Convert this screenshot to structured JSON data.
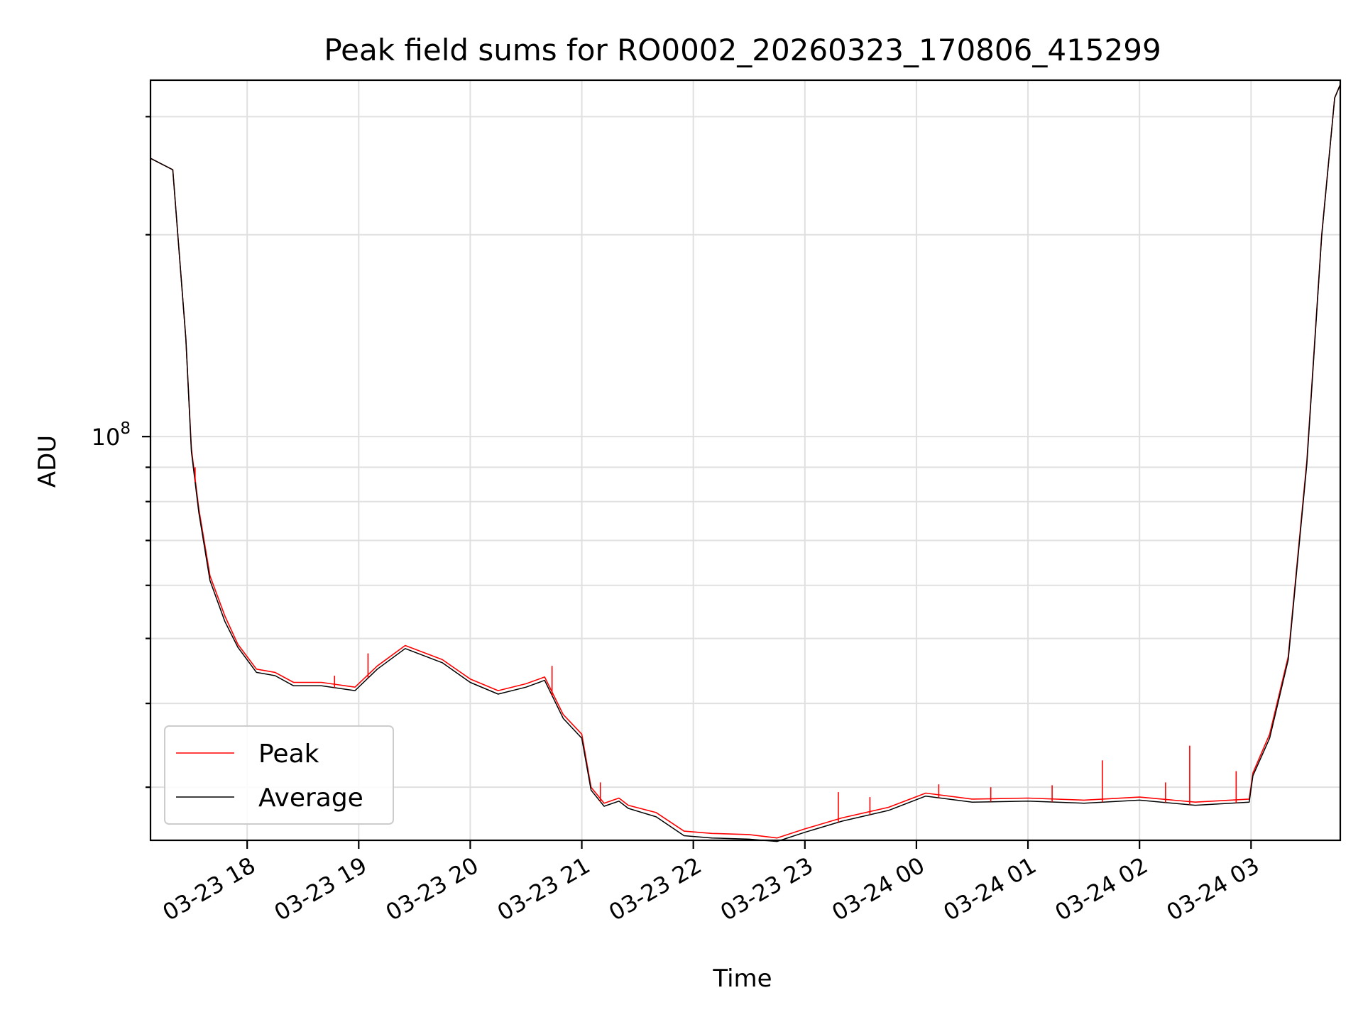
{
  "chart_data": {
    "type": "line",
    "title": "Peak field sums for RO0002_20260323_170806_415299",
    "xlabel": "Time",
    "ylabel": "ADU",
    "y_scale": "log",
    "ylim": [
      25000000,
      340000000
    ],
    "xlim": [
      "03-23 17:08",
      "03-24 03:48"
    ],
    "y_tick_labels": [
      {
        "value": 100000000,
        "base": "10",
        "exponent": "8"
      }
    ],
    "x_tick_labels": [
      "03-23 18",
      "03-23 19",
      "03-23 20",
      "03-23 21",
      "03-23 22",
      "03-23 23",
      "03-24 00",
      "03-24 01",
      "03-24 02",
      "03-24 03"
    ],
    "x_tick_times": [
      "03-23 18:00",
      "03-23 19:00",
      "03-23 20:00",
      "03-23 21:00",
      "03-23 22:00",
      "03-23 23:00",
      "03-24 00:00",
      "03-24 01:00",
      "03-24 02:00",
      "03-24 03:00"
    ],
    "grid": true,
    "legend_position": "lower-left",
    "series": [
      {
        "name": "Peak",
        "color": "#ff0000",
        "points": [
          [
            "03-23 17:08",
            260000000
          ],
          [
            "03-23 17:20",
            250000000
          ],
          [
            "03-23 17:27",
            140000000
          ],
          [
            "03-23 17:30",
            96000000
          ],
          [
            "03-23 17:34",
            78000000
          ],
          [
            "03-23 17:40",
            62000000
          ],
          [
            "03-23 17:48",
            54000000
          ],
          [
            "03-23 17:55",
            49000000
          ],
          [
            "03-23 18:05",
            45000000
          ],
          [
            "03-23 18:15",
            44500000
          ],
          [
            "03-23 18:25",
            43000000
          ],
          [
            "03-23 18:40",
            43000000
          ],
          [
            "03-23 18:58",
            42300000
          ],
          [
            "03-23 19:10",
            45500000
          ],
          [
            "03-23 19:25",
            48800000
          ],
          [
            "03-23 19:45",
            46500000
          ],
          [
            "03-23 20:00",
            43500000
          ],
          [
            "03-23 20:15",
            41800000
          ],
          [
            "03-23 20:30",
            42800000
          ],
          [
            "03-23 20:40",
            43800000
          ],
          [
            "03-23 20:50",
            38500000
          ],
          [
            "03-23 21:00",
            36000000
          ],
          [
            "03-23 21:05",
            30000000
          ],
          [
            "03-23 21:12",
            28400000
          ],
          [
            "03-23 21:20",
            28900000
          ],
          [
            "03-23 21:25",
            28200000
          ],
          [
            "03-23 21:40",
            27500000
          ],
          [
            "03-23 21:55",
            25800000
          ],
          [
            "03-23 22:10",
            25600000
          ],
          [
            "03-23 22:30",
            25500000
          ],
          [
            "03-23 22:45",
            25200000
          ],
          [
            "03-23 23:00",
            26000000
          ],
          [
            "03-23 23:20",
            27000000
          ],
          [
            "03-23 23:45",
            28000000
          ],
          [
            "03-24 00:05",
            29400000
          ],
          [
            "03-24 00:30",
            28800000
          ],
          [
            "03-24 01:00",
            28900000
          ],
          [
            "03-24 01:30",
            28700000
          ],
          [
            "03-24 02:00",
            29000000
          ],
          [
            "03-24 02:30",
            28500000
          ],
          [
            "03-24 02:59",
            28800000
          ],
          [
            "03-24 03:01",
            31500000
          ],
          [
            "03-24 03:10",
            36000000
          ],
          [
            "03-24 03:20",
            47000000
          ],
          [
            "03-24 03:30",
            92000000
          ],
          [
            "03-24 03:38",
            200000000
          ],
          [
            "03-24 03:45",
            320000000
          ],
          [
            "03-24 03:48",
            335000000
          ]
        ],
        "spikes": [
          [
            "03-23 17:32",
            90000000
          ],
          [
            "03-23 18:47",
            44000000
          ],
          [
            "03-23 19:05",
            47500000
          ],
          [
            "03-23 20:44",
            45500000
          ],
          [
            "03-23 21:10",
            30500000
          ],
          [
            "03-23 23:18",
            29500000
          ],
          [
            "03-23 23:35",
            29000000
          ],
          [
            "03-24 00:12",
            30300000
          ],
          [
            "03-24 00:40",
            30000000
          ],
          [
            "03-24 01:13",
            30200000
          ],
          [
            "03-24 01:40",
            32900000
          ],
          [
            "03-24 02:14",
            30500000
          ],
          [
            "03-24 02:27",
            34600000
          ],
          [
            "03-24 02:52",
            31700000
          ]
        ]
      },
      {
        "name": "Average",
        "color": "#000000",
        "points": [
          [
            "03-23 17:08",
            260000000
          ],
          [
            "03-23 17:20",
            250000000
          ],
          [
            "03-23 17:27",
            140000000
          ],
          [
            "03-23 17:30",
            95000000
          ],
          [
            "03-23 17:34",
            77000000
          ],
          [
            "03-23 17:40",
            61000000
          ],
          [
            "03-23 17:48",
            53000000
          ],
          [
            "03-23 17:55",
            48500000
          ],
          [
            "03-23 18:05",
            44500000
          ],
          [
            "03-23 18:15",
            44000000
          ],
          [
            "03-23 18:25",
            42500000
          ],
          [
            "03-23 18:40",
            42500000
          ],
          [
            "03-23 18:58",
            41800000
          ],
          [
            "03-23 19:10",
            45000000
          ],
          [
            "03-23 19:25",
            48300000
          ],
          [
            "03-23 19:45",
            46000000
          ],
          [
            "03-23 20:00",
            43000000
          ],
          [
            "03-23 20:15",
            41300000
          ],
          [
            "03-23 20:30",
            42300000
          ],
          [
            "03-23 20:40",
            43300000
          ],
          [
            "03-23 20:50",
            38000000
          ],
          [
            "03-23 21:00",
            35500000
          ],
          [
            "03-23 21:05",
            29700000
          ],
          [
            "03-23 21:12",
            28100000
          ],
          [
            "03-23 21:20",
            28600000
          ],
          [
            "03-23 21:25",
            27900000
          ],
          [
            "03-23 21:40",
            27100000
          ],
          [
            "03-23 21:55",
            25400000
          ],
          [
            "03-23 22:10",
            25200000
          ],
          [
            "03-23 22:30",
            25100000
          ],
          [
            "03-23 22:45",
            24900000
          ],
          [
            "03-23 23:00",
            25700000
          ],
          [
            "03-23 23:20",
            26700000
          ],
          [
            "03-23 23:45",
            27700000
          ],
          [
            "03-24 00:05",
            29100000
          ],
          [
            "03-24 00:30",
            28500000
          ],
          [
            "03-24 01:00",
            28600000
          ],
          [
            "03-24 01:30",
            28400000
          ],
          [
            "03-24 02:00",
            28700000
          ],
          [
            "03-24 02:30",
            28200000
          ],
          [
            "03-24 02:59",
            28500000
          ],
          [
            "03-24 03:01",
            31200000
          ],
          [
            "03-24 03:10",
            35500000
          ],
          [
            "03-24 03:20",
            46500000
          ],
          [
            "03-24 03:30",
            91000000
          ],
          [
            "03-24 03:38",
            199000000
          ],
          [
            "03-24 03:45",
            320000000
          ],
          [
            "03-24 03:48",
            335000000
          ]
        ]
      }
    ]
  }
}
